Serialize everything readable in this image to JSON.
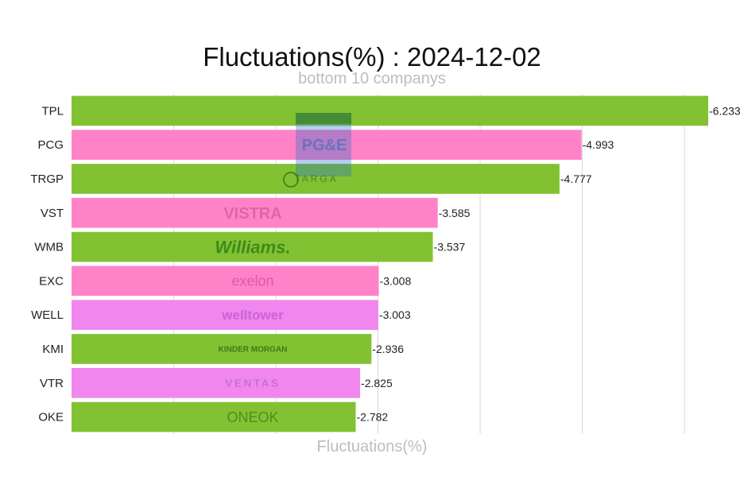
{
  "chart_data": {
    "type": "bar",
    "orientation": "horizontal",
    "title": "Fluctuations(%) : 2024-12-02",
    "subtitle": "bottom 10 companys",
    "xlabel": "Fluctuations(%)",
    "ylabel": "",
    "grid": true,
    "xlim": [
      0,
      6.8
    ],
    "categories": [
      "TPL",
      "PCG",
      "TRGP",
      "VST",
      "WMB",
      "EXC",
      "WELL",
      "KMI",
      "VTR",
      "OKE"
    ],
    "values": [
      -6.233,
      -4.993,
      -4.777,
      -3.585,
      -3.537,
      -3.008,
      -3.003,
      -2.936,
      -2.825,
      -2.782
    ],
    "value_labels": [
      "-6.233",
      "-4.993",
      "-4.777",
      "-3.585",
      "-3.537",
      "-3.008",
      "-3.003",
      "-2.936",
      "-2.825",
      "-2.782"
    ],
    "colors": [
      "#82c232",
      "#ff82c8",
      "#82c232",
      "#ff82c8",
      "#82c232",
      "#ff82c8",
      "#f086ee",
      "#82c232",
      "#f086ee",
      "#82c232"
    ],
    "logos": [
      "",
      "PG&E",
      "TARGA",
      "VISTRA",
      "Williams.",
      "exelon",
      "welltower",
      "KINDER MORGAN",
      "VENTAS",
      "ONEOK"
    ]
  }
}
